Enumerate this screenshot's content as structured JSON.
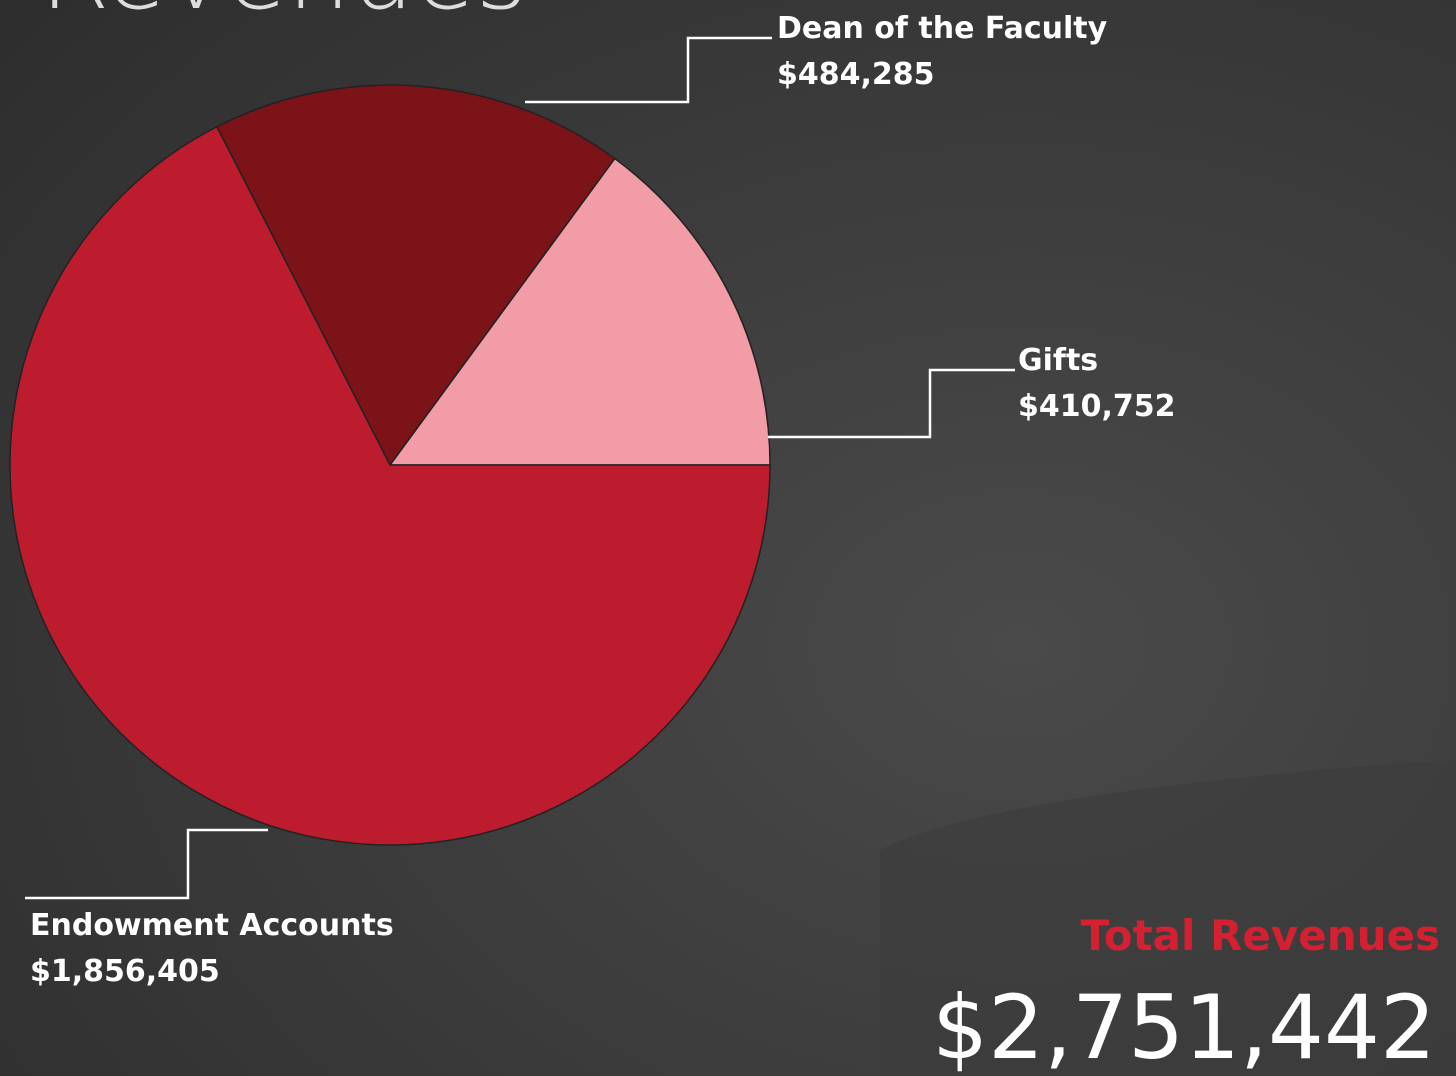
{
  "chart_data": {
    "type": "pie",
    "title": "Revenues",
    "categories": [
      "Gifts",
      "Dean of the Faculty",
      "Endowment Accounts"
    ],
    "values": [
      410752,
      484285,
      1856405
    ],
    "value_labels": [
      "$410,752",
      "$484,285",
      "$1,856,405"
    ],
    "colors": [
      "#f29ca7",
      "#7b1318",
      "#bd1c2e"
    ],
    "annotations": [
      "Total Revenues",
      "$2,751,442"
    ]
  }
}
